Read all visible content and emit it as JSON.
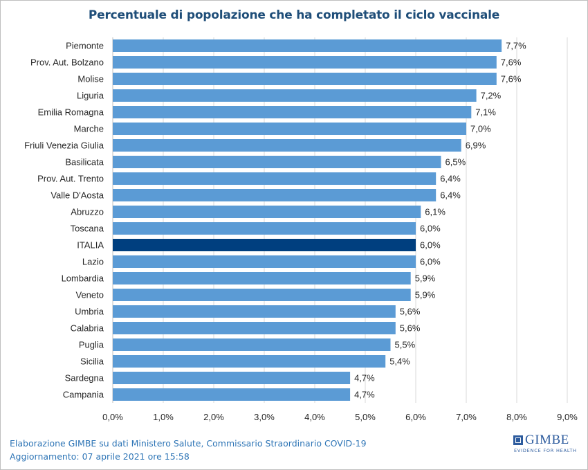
{
  "chart_data": {
    "type": "bar",
    "orientation": "horizontal",
    "title": "Percentuale di popolazione che ha completato il ciclo vaccinale",
    "categories": [
      "Piemonte",
      "Prov. Aut. Bolzano",
      "Molise",
      "Liguria",
      "Emilia Romagna",
      "Marche",
      "Friuli Venezia Giulia",
      "Basilicata",
      "Prov. Aut. Trento",
      "Valle D'Aosta",
      "Abruzzo",
      "Toscana",
      "ITALIA",
      "Lazio",
      "Lombardia",
      "Veneto",
      "Umbria",
      "Calabria",
      "Puglia",
      "Sicilia",
      "Sardegna",
      "Campania"
    ],
    "values": [
      7.7,
      7.6,
      7.6,
      7.2,
      7.1,
      7.0,
      6.9,
      6.5,
      6.4,
      6.4,
      6.1,
      6.0,
      6.0,
      6.0,
      5.9,
      5.9,
      5.6,
      5.6,
      5.5,
      5.4,
      4.7,
      4.7
    ],
    "value_labels": [
      "7,7%",
      "7,6%",
      "7,6%",
      "7,2%",
      "7,1%",
      "7,0%",
      "6,9%",
      "6,5%",
      "6,4%",
      "6,4%",
      "6,1%",
      "6,0%",
      "6,0%",
      "6,0%",
      "5,9%",
      "5,9%",
      "5,6%",
      "5,6%",
      "5,5%",
      "5,4%",
      "4,7%",
      "4,7%"
    ],
    "xlim": [
      0,
      9
    ],
    "xticks": [
      "0,0%",
      "1,0%",
      "2,0%",
      "3,0%",
      "4,0%",
      "5,0%",
      "6,0%",
      "7,0%",
      "8,0%",
      "9,0%"
    ],
    "grid": "vertical",
    "highlight": "ITALIA",
    "colors": {
      "bar": "#5b9bd5",
      "highlight": "#003f7f",
      "grid": "#d9d9d9",
      "title": "#1f4e79",
      "footer": "#2e75b6"
    }
  },
  "footer": {
    "line1": "Elaborazione GIMBE su dati Ministero Salute, Commissario Straordinario COVID-19",
    "line2": "Aggiornamento: 07 aprile 2021 ore 15:58"
  },
  "logo": {
    "name": "GIMBE",
    "tagline": "EVIDENCE FOR HEALTH"
  }
}
